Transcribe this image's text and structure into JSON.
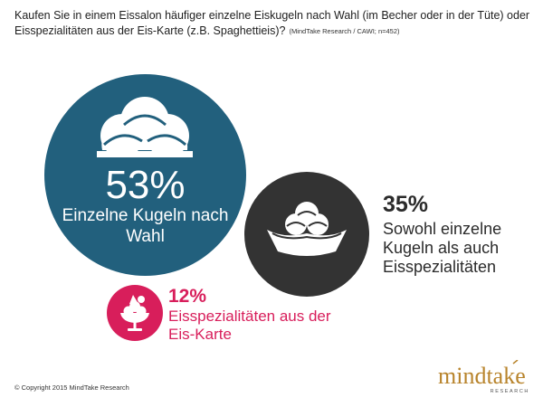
{
  "header": {
    "question": "Kaufen Sie in einem Eissalon häufiger einzelne Eiskugeln nach Wahl (im Becher oder in der Tüte) oder Eisspezialitäten aus der Eis-Karte (z.B. Spaghettieis)?",
    "source": "(MindTake Research / CAWI; n=452)"
  },
  "chart_data": {
    "type": "pie",
    "categories": [
      "Einzelne Kugeln nach Wahl",
      "Sowohl einzelne Kugeln als auch Eisspezialitäten",
      "Eisspezialitäten aus der Eis-Karte"
    ],
    "values": [
      53,
      35,
      12
    ],
    "unit": "%",
    "items": [
      {
        "value_label": "53%",
        "label": "Einzelne Kugeln nach Wahl",
        "color": "#22607d",
        "icon": "ice-cream-scoops-icon"
      },
      {
        "value_label": "35%",
        "label": "Sowohl einzelne Kugeln als auch Eisspezialitäten",
        "color": "#333333",
        "icon": "ice-cream-bowl-icon"
      },
      {
        "value_label": "12%",
        "label": "Eisspezialitäten aus der Eis-Karte",
        "color": "#d81e5b",
        "icon": "ice-cream-sundae-icon"
      }
    ]
  },
  "footer": {
    "copyright": "© Copyright 2015 MindTake Research",
    "logo_text": "mindtake",
    "logo_subtext": "RESEARCH"
  }
}
